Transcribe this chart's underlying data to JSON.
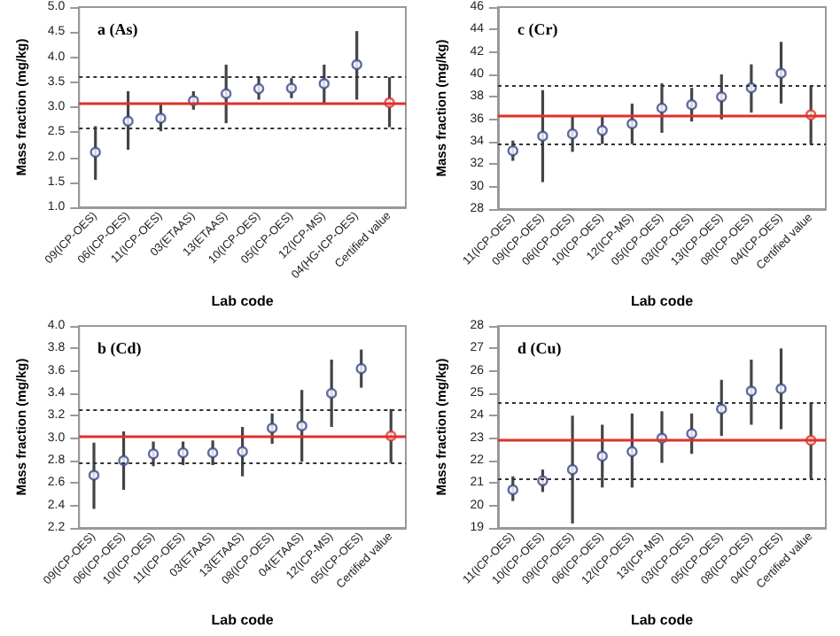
{
  "chart_data": [
    {
      "type": "scatter",
      "title": "a (As)",
      "xlabel": "Lab code",
      "ylabel": "Mass fraction (mg/kg)",
      "categories": [
        "09(ICP-OES)",
        "06(ICP-OES)",
        "11(ICP-OES)",
        "03(ETAAS)",
        "13(ETAAS)",
        "10(ICP-OES)",
        "05(ICP-OES)",
        "12(ICP-MS)",
        "04(HG-ICP-OES)",
        "Certified value"
      ],
      "series": [
        {
          "colors": [
            "#3b4a8c",
            "#3b4a8c",
            "#3b4a8c",
            "#3b4a8c",
            "#3b4a8c",
            "#3b4a8c",
            "#3b4a8c",
            "#3b4a8c",
            "#3b4a8c",
            "#e0302a"
          ],
          "values": [
            2.1,
            2.72,
            2.78,
            3.13,
            3.27,
            3.37,
            3.38,
            3.47,
            3.85,
            3.09
          ],
          "errors": [
            [
              1.55,
              2.62
            ],
            [
              2.15,
              3.32
            ],
            [
              2.52,
              3.05
            ],
            [
              2.95,
              3.32
            ],
            [
              2.68,
              3.85
            ],
            [
              3.15,
              3.6
            ],
            [
              3.18,
              3.58
            ],
            [
              3.08,
              3.85
            ],
            [
              3.15,
              4.52
            ],
            [
              2.6,
              3.6
            ]
          ]
        }
      ],
      "ref_lines": [
        {
          "axis": "y",
          "value": 3.09,
          "color": "#e0302a",
          "line_style": "solid"
        },
        {
          "axis": "y",
          "value": 2.6,
          "color": "#333333",
          "line_style": "dotted"
        },
        {
          "axis": "y",
          "value": 3.6,
          "color": "#333333",
          "line_style": "dotted"
        }
      ],
      "ylim": [
        1,
        5
      ],
      "yticks": [
        {
          "value": 1,
          "label": "1.0"
        },
        1.5,
        {
          "value": 2,
          "label": "2.0"
        },
        2.5,
        {
          "value": 3,
          "label": "3.0"
        },
        3.5,
        {
          "value": 4,
          "label": "4.0"
        },
        4.5,
        {
          "value": 5,
          "label": "5.0"
        }
      ],
      "grid": false,
      "marker": "circle"
    },
    {
      "type": "scatter",
      "title": "c (Cr)",
      "xlabel": "Lab code",
      "ylabel": "Mass fraction (mg/kg)",
      "categories": [
        "11(ICP-OES)",
        "09(ICP-OES)",
        "06(ICP-OES)",
        "10(ICP-OES)",
        "12(ICP-MS)",
        "05(ICP-OES)",
        "03(ICP-OES)",
        "13(ICP-OES)",
        "08(ICP-OES)",
        "04(ICP-OES)",
        "Certified value"
      ],
      "series": [
        {
          "colors": [
            "#3b4a8c",
            "#3b4a8c",
            "#3b4a8c",
            "#3b4a8c",
            "#3b4a8c",
            "#3b4a8c",
            "#3b4a8c",
            "#3b4a8c",
            "#3b4a8c",
            "#3b4a8c",
            "#e0302a"
          ],
          "values": [
            33.2,
            34.5,
            34.7,
            35.0,
            35.6,
            37.0,
            37.3,
            38.0,
            38.8,
            40.1,
            36.4
          ],
          "errors": [
            [
              32.3,
              34.1
            ],
            [
              30.4,
              38.6
            ],
            [
              33.1,
              36.3
            ],
            [
              33.8,
              36.2
            ],
            [
              33.8,
              37.4
            ],
            [
              34.8,
              39.2
            ],
            [
              35.8,
              38.8
            ],
            [
              36.0,
              40.0
            ],
            [
              36.6,
              40.9
            ],
            [
              37.4,
              42.9
            ],
            [
              33.8,
              39.0
            ]
          ]
        }
      ],
      "ref_lines": [
        {
          "axis": "y",
          "value": 36.4,
          "color": "#e0302a",
          "line_style": "solid"
        },
        {
          "axis": "y",
          "value": 33.8,
          "color": "#333333",
          "line_style": "dotted"
        },
        {
          "axis": "y",
          "value": 39.0,
          "color": "#333333",
          "line_style": "dotted"
        }
      ],
      "ylim": [
        28,
        46
      ],
      "yticks": [
        28,
        30,
        32,
        34,
        36,
        38,
        40,
        42,
        44,
        46
      ],
      "grid": false,
      "marker": "circle"
    },
    {
      "type": "scatter",
      "title": "b (Cd)",
      "xlabel": "Lab code",
      "ylabel": "Mass fraction (mg/kg)",
      "categories": [
        "09(ICP-OES)",
        "06(ICP-OES)",
        "10(ICP-OES)",
        "11(ICP-OES)",
        "03(ETAAS)",
        "13(ETAAS)",
        "08(ICP-OES)",
        "04(ETAAS)",
        "12(ICP-MS)",
        "05(ICP-OES)",
        "Certified value"
      ],
      "series": [
        {
          "colors": [
            "#3b4a8c",
            "#3b4a8c",
            "#3b4a8c",
            "#3b4a8c",
            "#3b4a8c",
            "#3b4a8c",
            "#3b4a8c",
            "#3b4a8c",
            "#3b4a8c",
            "#3b4a8c",
            "#e0302a"
          ],
          "values": [
            2.67,
            2.8,
            2.86,
            2.87,
            2.87,
            2.88,
            3.09,
            3.11,
            3.4,
            3.62,
            3.02
          ],
          "errors": [
            [
              2.37,
              2.96
            ],
            [
              2.54,
              3.06
            ],
            [
              2.75,
              2.97
            ],
            [
              2.76,
              2.97
            ],
            [
              2.76,
              2.98
            ],
            [
              2.66,
              3.1
            ],
            [
              2.95,
              3.22
            ],
            [
              2.79,
              3.43
            ],
            [
              3.1,
              3.7
            ],
            [
              3.45,
              3.79
            ],
            [
              2.78,
              3.26
            ]
          ]
        }
      ],
      "ref_lines": [
        {
          "axis": "y",
          "value": 3.02,
          "color": "#e0302a",
          "line_style": "solid"
        },
        {
          "axis": "y",
          "value": 2.78,
          "color": "#333333",
          "line_style": "dotted"
        },
        {
          "axis": "y",
          "value": 3.26,
          "color": "#333333",
          "line_style": "dotted"
        }
      ],
      "ylim": [
        2.2,
        4.0
      ],
      "yticks": [
        2.2,
        2.4,
        2.6,
        2.8,
        {
          "value": 3,
          "label": "3.0"
        },
        3.2,
        3.4,
        3.6,
        3.8,
        {
          "value": 4,
          "label": "4.0"
        }
      ],
      "grid": false,
      "marker": "circle"
    },
    {
      "type": "scatter",
      "title": "d (Cu)",
      "xlabel": "Lab code",
      "ylabel": "Mass fraction (mg/kg)",
      "categories": [
        "11(ICP-OES)",
        "10(ICP-OES)",
        "09(ICP-OES)",
        "06(ICP-OES)",
        "12(ICP-OES)",
        "13(ICP-MS)",
        "03(ICP-OES)",
        "05(ICP-OES)",
        "08(ICP-OES)",
        "04(ICP-OES)",
        "Certified value"
      ],
      "series": [
        {
          "colors": [
            "#3b4a8c",
            "#3b4a8c",
            "#3b4a8c",
            "#3b4a8c",
            "#3b4a8c",
            "#3b4a8c",
            "#3b4a8c",
            "#3b4a8c",
            "#3b4a8c",
            "#3b4a8c",
            "#e0302a"
          ],
          "values": [
            20.7,
            21.1,
            21.6,
            22.2,
            22.4,
            23.0,
            23.2,
            24.3,
            25.1,
            25.2,
            22.9
          ],
          "errors": [
            [
              20.2,
              21.3
            ],
            [
              20.6,
              21.6
            ],
            [
              19.2,
              24.0
            ],
            [
              20.8,
              23.6
            ],
            [
              20.8,
              24.1
            ],
            [
              21.9,
              24.2
            ],
            [
              22.3,
              24.1
            ],
            [
              23.1,
              25.6
            ],
            [
              23.6,
              26.5
            ],
            [
              23.4,
              27.0
            ],
            [
              21.2,
              24.6
            ]
          ]
        }
      ],
      "ref_lines": [
        {
          "axis": "y",
          "value": 22.9,
          "color": "#e0302a",
          "line_style": "solid"
        },
        {
          "axis": "y",
          "value": 21.2,
          "color": "#333333",
          "line_style": "dotted"
        },
        {
          "axis": "y",
          "value": 24.6,
          "color": "#333333",
          "line_style": "dotted"
        }
      ],
      "ylim": [
        19,
        28
      ],
      "yticks": [
        19,
        20,
        21,
        22,
        23,
        24,
        25,
        26,
        27,
        28
      ],
      "grid": false,
      "marker": "circle"
    }
  ]
}
